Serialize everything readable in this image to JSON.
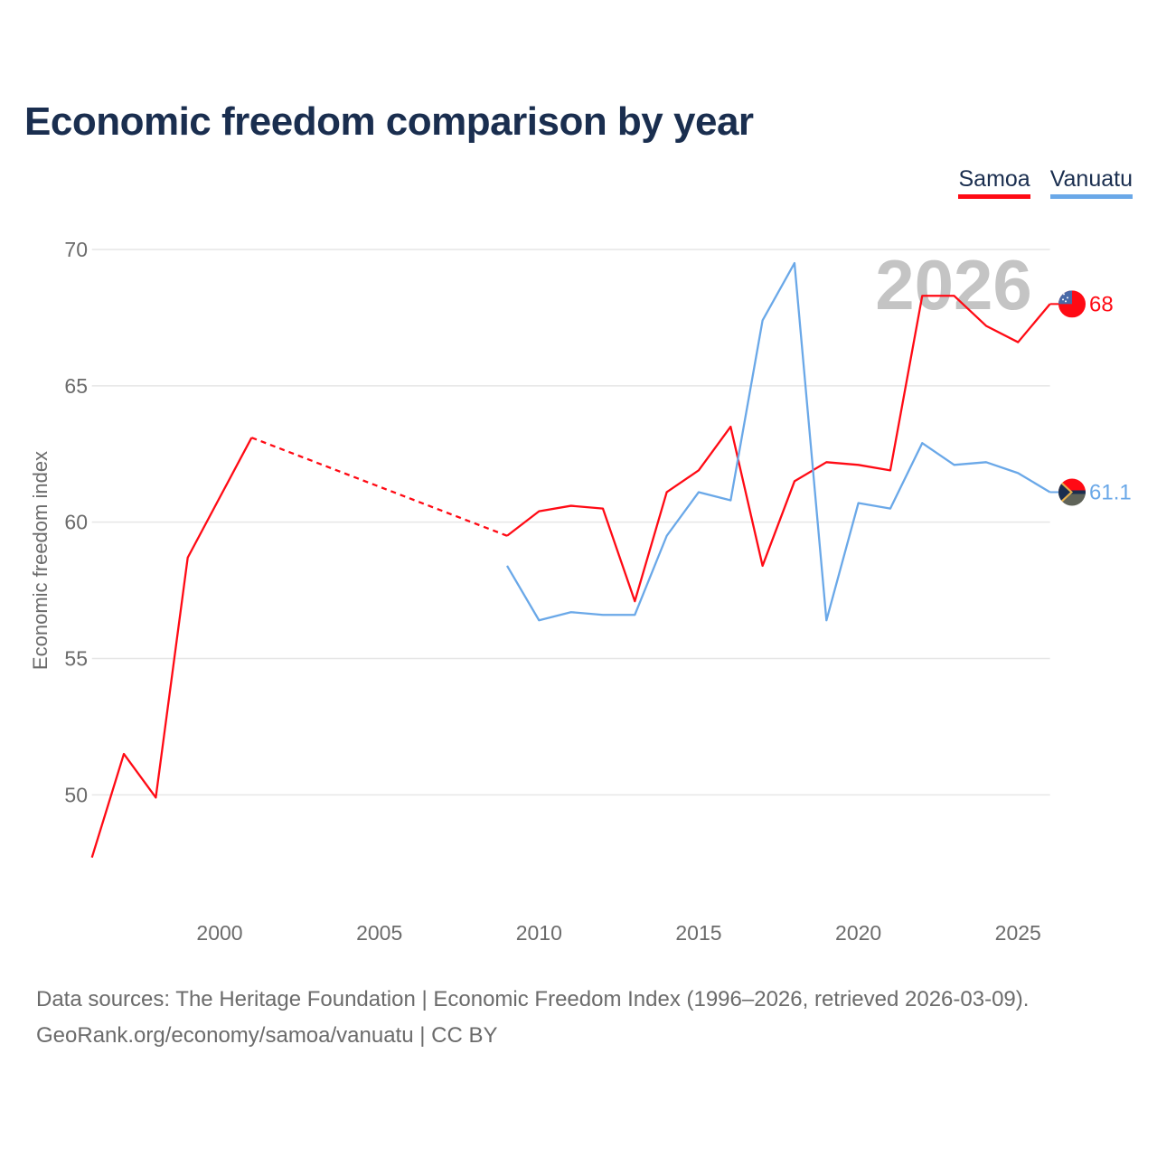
{
  "title": "Economic freedom comparison by year",
  "footer": {
    "line1": "Data sources: The Heritage Foundation | Economic Freedom Index (1996–2026, retrieved 2026-03-09).",
    "line2": "GeoRank.org/economy/samoa/vanuatu | CC BY"
  },
  "chart_data": {
    "type": "line",
    "title": "Economic freedom comparison by year",
    "xlabel": "",
    "ylabel": "Economic freedom index",
    "xlim": [
      1996,
      2026
    ],
    "ylim": [
      46,
      70
    ],
    "xticks": [
      2000,
      2005,
      2010,
      2015,
      2020,
      2025
    ],
    "yticks": [
      50,
      55,
      60,
      65,
      70
    ],
    "grid": true,
    "legend_position": "top-right",
    "watermark_year": "2026",
    "series": [
      {
        "name": "Samoa",
        "color": "#ff0a14",
        "end_label": "68",
        "gap_dashed": [
          2001,
          2009
        ],
        "points": [
          [
            1996,
            47.7
          ],
          [
            1997,
            51.5
          ],
          [
            1998,
            49.9
          ],
          [
            1999,
            58.7
          ],
          [
            2000,
            60.9
          ],
          [
            2001,
            63.1
          ],
          [
            2009,
            59.5
          ],
          [
            2010,
            60.4
          ],
          [
            2011,
            60.6
          ],
          [
            2012,
            60.5
          ],
          [
            2013,
            57.1
          ],
          [
            2014,
            61.1
          ],
          [
            2015,
            61.9
          ],
          [
            2016,
            63.5
          ],
          [
            2017,
            58.4
          ],
          [
            2018,
            61.5
          ],
          [
            2019,
            62.2
          ],
          [
            2020,
            62.1
          ],
          [
            2021,
            61.9
          ],
          [
            2022,
            68.3
          ],
          [
            2023,
            68.3
          ],
          [
            2024,
            67.2
          ],
          [
            2025,
            66.6
          ],
          [
            2026,
            68.0
          ]
        ]
      },
      {
        "name": "Vanuatu",
        "color": "#6aa8e8",
        "end_label": "61.1",
        "points": [
          [
            2009,
            58.4
          ],
          [
            2010,
            56.4
          ],
          [
            2011,
            56.7
          ],
          [
            2012,
            56.6
          ],
          [
            2013,
            56.6
          ],
          [
            2014,
            59.5
          ],
          [
            2015,
            61.1
          ],
          [
            2016,
            60.8
          ],
          [
            2017,
            67.4
          ],
          [
            2018,
            69.5
          ],
          [
            2019,
            56.4
          ],
          [
            2020,
            60.7
          ],
          [
            2021,
            60.5
          ],
          [
            2022,
            62.9
          ],
          [
            2023,
            62.1
          ],
          [
            2024,
            62.2
          ],
          [
            2025,
            61.8
          ],
          [
            2026,
            61.1
          ]
        ]
      }
    ]
  }
}
